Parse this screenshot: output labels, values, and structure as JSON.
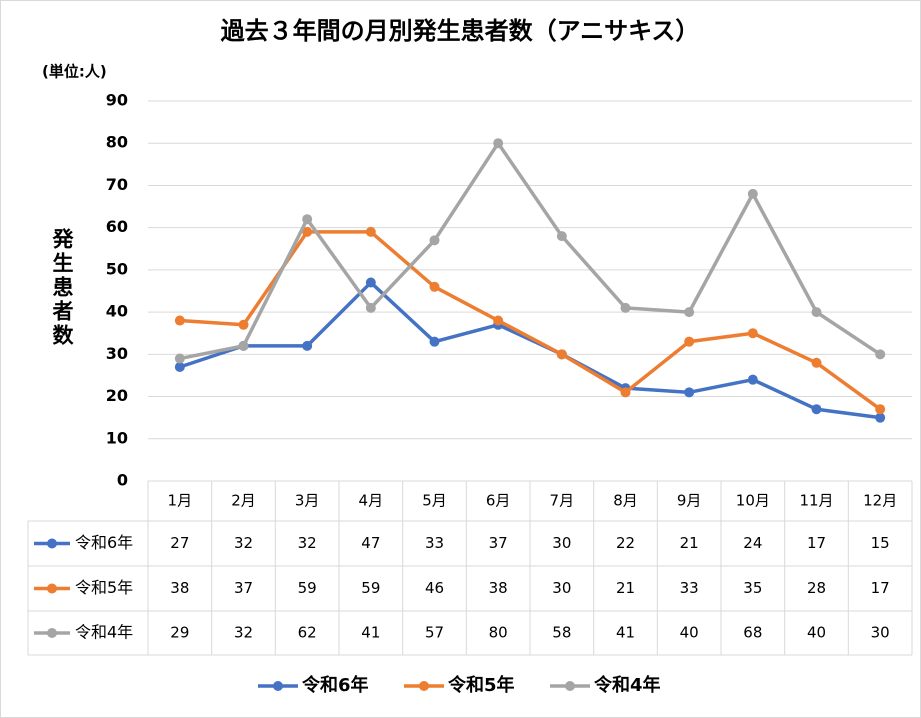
{
  "chart_data": {
    "type": "line",
    "title": "過去３年間の月別発生患者数（アニサキス）",
    "unit_label": "(単位:人)",
    "y_label": "発生患者数",
    "categories": [
      "1月",
      "2月",
      "3月",
      "4月",
      "5月",
      "6月",
      "7月",
      "8月",
      "9月",
      "10月",
      "11月",
      "12月"
    ],
    "series": [
      {
        "name": "令和6年",
        "color": "#4472c4",
        "values": [
          27,
          32,
          32,
          47,
          33,
          37,
          30,
          22,
          21,
          24,
          17,
          15
        ]
      },
      {
        "name": "令和5年",
        "color": "#ed7d31",
        "values": [
          38,
          37,
          59,
          59,
          46,
          38,
          30,
          21,
          33,
          35,
          28,
          17
        ]
      },
      {
        "name": "令和4年",
        "color": "#a5a5a5",
        "values": [
          29,
          32,
          62,
          41,
          57,
          80,
          58,
          41,
          40,
          68,
          40,
          30
        ]
      }
    ],
    "ylim": [
      0,
      90
    ],
    "yticks": [
      0,
      10,
      20,
      30,
      40,
      50,
      60,
      70,
      80,
      90
    ],
    "grid": true,
    "data_table": true,
    "legend": "bottom"
  }
}
